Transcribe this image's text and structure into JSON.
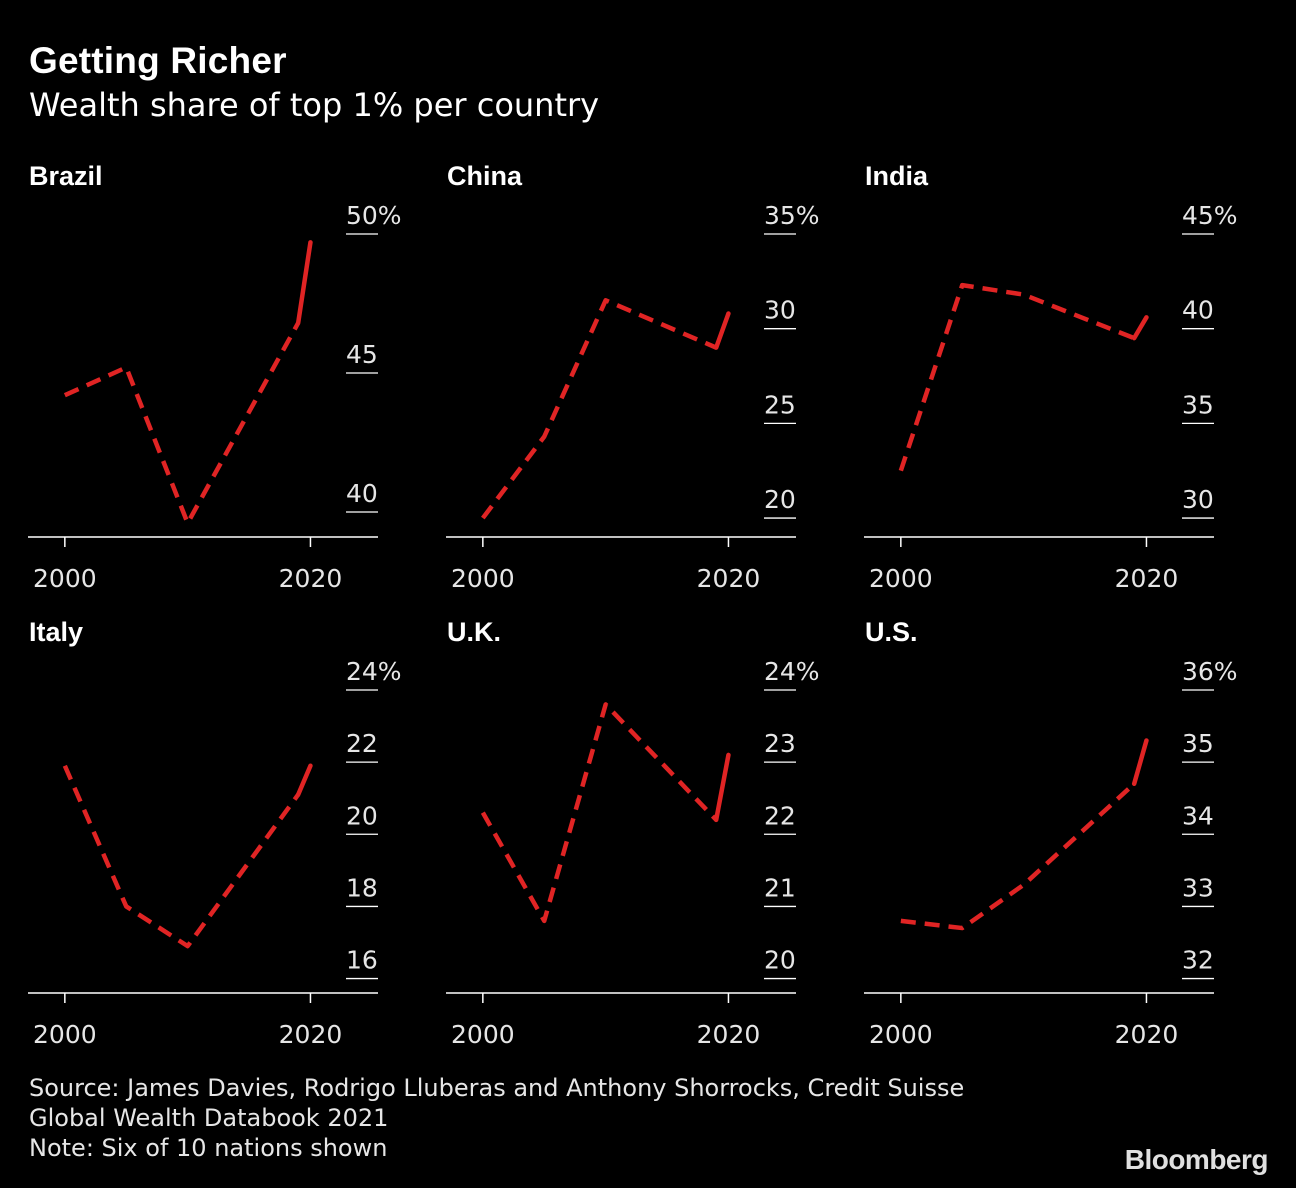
{
  "header": {
    "title": "Getting Richer",
    "subtitle": "Wealth share of top 1% per country"
  },
  "footer": {
    "source_line1": "Source: James Davies, Rodrigo Lluberas and Anthony Shorrocks, Credit Suisse",
    "source_line2": "Global Wealth Databook 2021",
    "note": "Note: Six of 10 nations shown",
    "logo": "Bloomberg"
  },
  "colors": {
    "background": "#000000",
    "line": "#e02424",
    "axis": "#ffffff",
    "text": "#ffffff"
  },
  "chart_data": [
    {
      "type": "line",
      "title": "Brazil",
      "x": [
        2000,
        2005,
        2010,
        2019,
        2020
      ],
      "values": [
        44.2,
        45.2,
        39.6,
        46.8,
        49.7
      ],
      "xticks": [
        2000,
        2020
      ],
      "xtick_labels": [
        "2000",
        "2020"
      ],
      "yticks": [
        40,
        45,
        50
      ],
      "ytick_labels": [
        "40",
        "45",
        "50%"
      ],
      "ylim": [
        39.1,
        50.0
      ],
      "xlim": [
        1997,
        2025.5
      ]
    },
    {
      "type": "line",
      "title": "China",
      "x": [
        2000,
        2005,
        2010,
        2019,
        2020
      ],
      "values": [
        20.0,
        24.3,
        31.5,
        29.0,
        30.8
      ],
      "xticks": [
        2000,
        2020
      ],
      "xtick_labels": [
        "2000",
        "2020"
      ],
      "yticks": [
        20,
        25,
        30,
        35
      ],
      "ytick_labels": [
        "20",
        "25",
        "30",
        "35%"
      ],
      "ylim": [
        19.0,
        35.0
      ],
      "xlim": [
        1997,
        2025.5
      ]
    },
    {
      "type": "line",
      "title": "India",
      "x": [
        2000,
        2005,
        2010,
        2019,
        2020
      ],
      "values": [
        32.5,
        42.3,
        41.8,
        39.5,
        40.6
      ],
      "xticks": [
        2000,
        2020
      ],
      "xtick_labels": [
        "2000",
        "2020"
      ],
      "yticks": [
        30,
        35,
        40,
        45
      ],
      "ytick_labels": [
        "30",
        "35",
        "40",
        "45%"
      ],
      "ylim": [
        29.0,
        45.0
      ],
      "xlim": [
        1997,
        2025.5
      ]
    },
    {
      "type": "line",
      "title": "Italy",
      "x": [
        2000,
        2005,
        2010,
        2019,
        2020
      ],
      "values": [
        21.9,
        18.0,
        16.9,
        21.1,
        21.9
      ],
      "xticks": [
        2000,
        2020
      ],
      "xtick_labels": [
        "2000",
        "2020"
      ],
      "yticks": [
        16,
        18,
        20,
        22,
        24
      ],
      "ytick_labels": [
        "16",
        "18",
        "20",
        "22",
        "24%"
      ],
      "ylim": [
        15.6,
        24.0
      ],
      "xlim": [
        1997,
        2025.5
      ]
    },
    {
      "type": "line",
      "title": "U.K.",
      "x": [
        2000,
        2005,
        2010,
        2019,
        2020
      ],
      "values": [
        22.3,
        20.8,
        23.8,
        22.2,
        23.1
      ],
      "xticks": [
        2000,
        2020
      ],
      "xtick_labels": [
        "2000",
        "2020"
      ],
      "yticks": [
        20,
        21,
        22,
        23,
        24
      ],
      "ytick_labels": [
        "20",
        "21",
        "22",
        "23",
        "24%"
      ],
      "ylim": [
        19.8,
        24.0
      ],
      "xlim": [
        1997,
        2025.5
      ]
    },
    {
      "type": "line",
      "title": "U.S.",
      "x": [
        2000,
        2005,
        2010,
        2019,
        2020
      ],
      "values": [
        32.8,
        32.7,
        33.3,
        34.7,
        35.3
      ],
      "xticks": [
        2000,
        2020
      ],
      "xtick_labels": [
        "2000",
        "2020"
      ],
      "yticks": [
        32,
        33,
        34,
        35,
        36
      ],
      "ytick_labels": [
        "32",
        "33",
        "34",
        "35",
        "36%"
      ],
      "ylim": [
        31.8,
        36.0
      ],
      "xlim": [
        1997,
        2025.5
      ]
    }
  ]
}
